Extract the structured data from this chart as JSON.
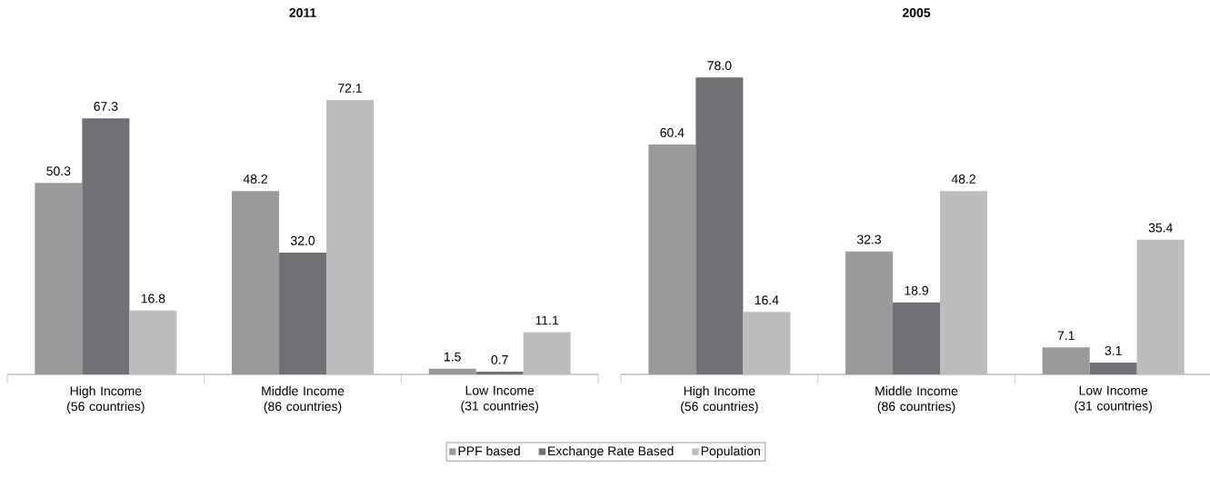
{
  "chart_data": [
    {
      "type": "bar",
      "title": "2011",
      "categories": [
        "High Income (56 countries)",
        "Middle Income (86 countries)",
        "Low Income (31 countries)"
      ],
      "legend": "bottom",
      "series": [
        {
          "name": "PPF based",
          "color": "#9a9a9d",
          "values": [
            50.3,
            48.2,
            1.5
          ],
          "value_labels": [
            "50.3",
            "48.2",
            "1.5"
          ]
        },
        {
          "name": "Exchange Rate Based",
          "color": "#707075",
          "values": [
            67.3,
            32.0,
            0.7
          ],
          "value_labels": [
            "67.3",
            "32.0",
            "0.7"
          ]
        },
        {
          "name": "Population",
          "color": "#bdbdc0",
          "values": [
            16.8,
            72.1,
            11.1
          ],
          "value_labels": [
            "16.8",
            "72.1",
            "11.1"
          ]
        }
      ]
    },
    {
      "type": "bar",
      "title": "2005",
      "categories": [
        "High Income (56 countries)",
        "Middle Income (86 countries)",
        "Low Income (31 countries)"
      ],
      "legend": false,
      "series": [
        {
          "color": "#9a9a9d",
          "values": [
            60.4,
            32.3,
            7.1
          ],
          "value_labels": [
            "60.4",
            "32.3",
            "7.1"
          ]
        },
        {
          "color": "#707075",
          "values": [
            78.0,
            18.9,
            3.1
          ],
          "value_labels": [
            "78.0",
            "18.9",
            "3.1"
          ]
        },
        {
          "color": "#bdbdc0",
          "values": [
            16.4,
            48.2,
            35.4
          ],
          "value_labels": [
            "16.4",
            "48.2",
            "35.4"
          ]
        }
      ]
    }
  ]
}
